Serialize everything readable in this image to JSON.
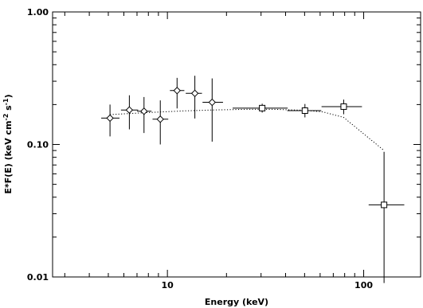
{
  "chart_data": {
    "type": "scatter",
    "title": "",
    "xlabel": "Energy (keV)",
    "ylabel_main": "E*F(E) (keV cm",
    "ylabel_exp1": "-2",
    "ylabel_mid": " s",
    "ylabel_exp2": "-1",
    "ylabel_end": ")",
    "xscale": "log",
    "yscale": "log",
    "xlim": [
      2.6,
      195
    ],
    "ylim": [
      0.01,
      1.0
    ],
    "x_tick_labels": [
      {
        "value": 10,
        "label": "10"
      },
      {
        "value": 100,
        "label": "100"
      }
    ],
    "y_tick_labels": [
      {
        "value": 0.01,
        "label": "0.01"
      },
      {
        "value": 0.1,
        "label": "0.10"
      },
      {
        "value": 1.0,
        "label": "1.00"
      }
    ],
    "series": [
      {
        "marker": "diamond",
        "points": [
          {
            "x": 5.1,
            "y": 0.158,
            "xlo": 4.6,
            "xhi": 5.7,
            "ylo": 0.115,
            "yhi": 0.2
          },
          {
            "x": 6.4,
            "y": 0.182,
            "xlo": 5.8,
            "xhi": 7.1,
            "ylo": 0.13,
            "yhi": 0.235
          },
          {
            "x": 7.6,
            "y": 0.178,
            "xlo": 7.0,
            "xhi": 8.3,
            "ylo": 0.122,
            "yhi": 0.228
          },
          {
            "x": 9.2,
            "y": 0.155,
            "xlo": 8.4,
            "xhi": 10.1,
            "ylo": 0.1,
            "yhi": 0.215
          },
          {
            "x": 11.2,
            "y": 0.255,
            "xlo": 10.3,
            "xhi": 12.2,
            "ylo": 0.187,
            "yhi": 0.318
          },
          {
            "x": 13.8,
            "y": 0.243,
            "xlo": 12.4,
            "xhi": 15.0,
            "ylo": 0.157,
            "yhi": 0.33
          },
          {
            "x": 16.9,
            "y": 0.208,
            "xlo": 15.1,
            "xhi": 19.2,
            "ylo": 0.105,
            "yhi": 0.315
          }
        ]
      },
      {
        "marker": "square",
        "points": [
          {
            "x": 30.4,
            "y": 0.188,
            "xlo": 21.5,
            "xhi": 41.0,
            "ylo": 0.174,
            "yhi": 0.203
          },
          {
            "x": 50.2,
            "y": 0.18,
            "xlo": 40.8,
            "xhi": 60.8,
            "ylo": 0.16,
            "yhi": 0.202
          },
          {
            "x": 79.1,
            "y": 0.193,
            "xlo": 61.0,
            "xhi": 98.0,
            "ylo": 0.169,
            "yhi": 0.218
          },
          {
            "x": 127.0,
            "y": 0.035,
            "xlo": 106.0,
            "xhi": 161.0,
            "ylo": 0.009,
            "yhi": 0.088
          }
        ]
      }
    ],
    "model_curve": {
      "style": "dotted",
      "x": [
        5.1,
        8,
        12,
        17,
        25,
        35,
        50,
        62,
        79,
        127
      ],
      "y": [
        0.168,
        0.174,
        0.179,
        0.182,
        0.184,
        0.184,
        0.181,
        0.176,
        0.16,
        0.09
      ]
    },
    "grid": false,
    "legend": "none"
  }
}
